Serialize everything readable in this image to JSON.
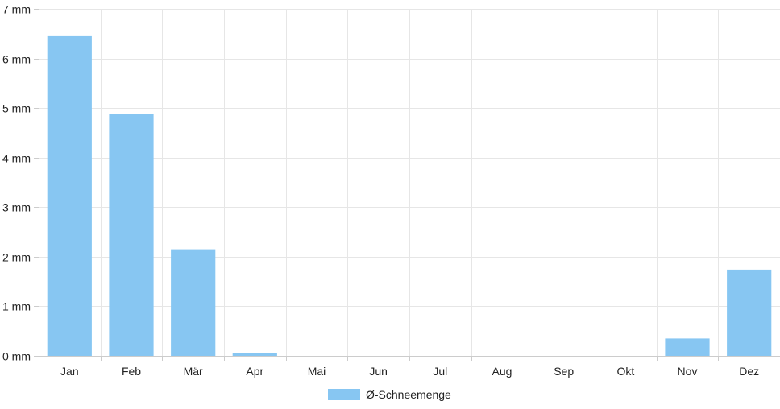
{
  "chart_data": {
    "type": "bar",
    "categories": [
      "Jan",
      "Feb",
      "Mär",
      "Apr",
      "Mai",
      "Jun",
      "Jul",
      "Aug",
      "Sep",
      "Okt",
      "Nov",
      "Dez"
    ],
    "series": [
      {
        "name": "Ø-Schneemenge",
        "color": "#87c6f2",
        "values": [
          6.45,
          4.88,
          2.15,
          0.05,
          0,
          0,
          0,
          0,
          0,
          0,
          0.35,
          1.74
        ]
      }
    ],
    "ylim": [
      0,
      7
    ],
    "y_ticks": [
      {
        "value": 0,
        "label": "0 mm"
      },
      {
        "value": 1,
        "label": "1 mm"
      },
      {
        "value": 2,
        "label": "2 mm"
      },
      {
        "value": 3,
        "label": "3 mm"
      },
      {
        "value": 4,
        "label": "4 mm"
      },
      {
        "value": 5,
        "label": "5 mm"
      },
      {
        "value": 6,
        "label": "6 mm"
      },
      {
        "value": 7,
        "label": "7 mm"
      }
    ],
    "grid": true,
    "legend_position": "bottom"
  }
}
